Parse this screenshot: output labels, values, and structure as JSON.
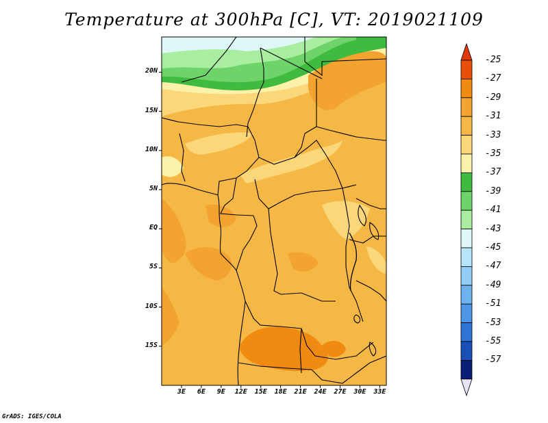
{
  "title": "Temperature at 300hPa [C], VT: 2019021109",
  "credit": "GrADS: IGES/COLA",
  "map": {
    "lon_range": [
      0,
      34
    ],
    "lat_range": [
      -20,
      24.5
    ],
    "y_ticks": [
      "20N",
      "15N",
      "10N",
      "5N",
      "EQ",
      "5S",
      "10S",
      "15S"
    ],
    "y_tick_values": [
      20,
      15,
      10,
      5,
      0,
      -5,
      -10,
      -15
    ],
    "x_ticks": [
      "3E",
      "6E",
      "9E",
      "12E",
      "15E",
      "18E",
      "21E",
      "24E",
      "27E",
      "30E",
      "33E"
    ],
    "x_tick_values": [
      3,
      6,
      9,
      12,
      15,
      18,
      21,
      24,
      27,
      30,
      33
    ]
  },
  "colorbar": {
    "labels": [
      "-25",
      "-27",
      "-29",
      "-31",
      "-33",
      "-35",
      "-37",
      "-39",
      "-41",
      "-43",
      "-45",
      "-47",
      "-49",
      "-51",
      "-53",
      "-55",
      "-57"
    ],
    "colors": [
      "#e8500a",
      "#f08a10",
      "#f3a430",
      "#f5b845",
      "#fbd77a",
      "#fcf1a8",
      "#3fbb3f",
      "#6ed46a",
      "#a8eda0",
      "#def8f8",
      "#b8e4fa",
      "#92cdf5",
      "#6fb3ee",
      "#4d95e6",
      "#2f73d5",
      "#1a4fb8",
      "#0a1e78"
    ],
    "top_color": "#e03a0a",
    "bottom_color": "#e8e4f8"
  }
}
